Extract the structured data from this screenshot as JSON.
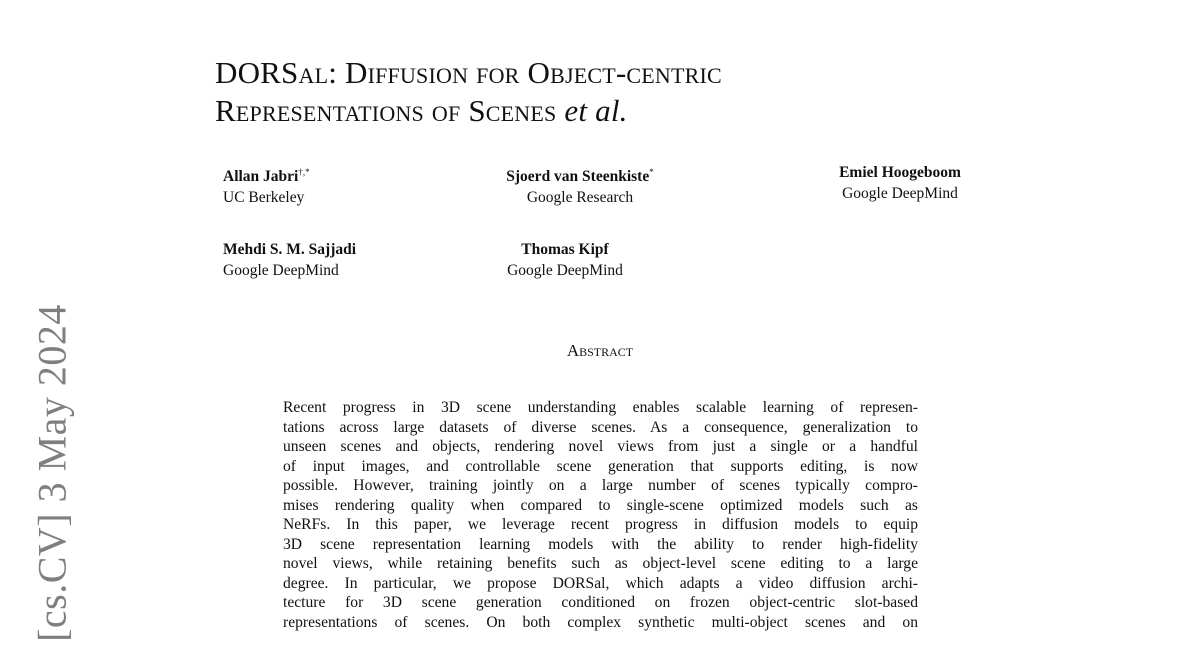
{
  "arxiv_stamp": "[cs.CV]  3 May 2024",
  "title": {
    "line1": "DORSal: Diffusion for Object-centric",
    "line2": "Representations of Scenes",
    "suffix": "et al."
  },
  "authors": [
    {
      "name": "Allan Jabri",
      "marks": "†,*",
      "affiliation": "UC Berkeley"
    },
    {
      "name": "Sjoerd van Steenkiste",
      "marks": "*",
      "affiliation": "Google Research"
    },
    {
      "name": "Emiel Hoogeboom",
      "marks": "",
      "affiliation": "Google DeepMind"
    },
    {
      "name": "Mehdi S. M. Sajjadi",
      "marks": "",
      "affiliation": "Google DeepMind"
    },
    {
      "name": "Thomas Kipf",
      "marks": "",
      "affiliation": "Google DeepMind"
    }
  ],
  "abstract": {
    "heading": "Abstract",
    "lines": [
      "Recent progress in 3D scene understanding enables scalable learning of represen-",
      "tations across large datasets of diverse scenes. As a consequence, generalization to",
      "unseen scenes and objects, rendering novel views from just a single or a handful",
      "of input images, and controllable scene generation that supports editing, is now",
      "possible. However, training jointly on a large number of scenes typically compro-",
      "mises rendering quality when compared to single-scene optimized models such as",
      "NeRFs. In this paper, we leverage recent progress in diffusion models to equip",
      "3D scene representation learning models with the ability to render high-fidelity",
      "novel views, while retaining benefits such as object-level scene editing to a large",
      "degree. In particular, we propose DORSal, which adapts a video diffusion archi-",
      "tecture for 3D scene generation conditioned on frozen object-centric slot-based",
      "representations of scenes. On both complex synthetic multi-object scenes and on"
    ]
  }
}
